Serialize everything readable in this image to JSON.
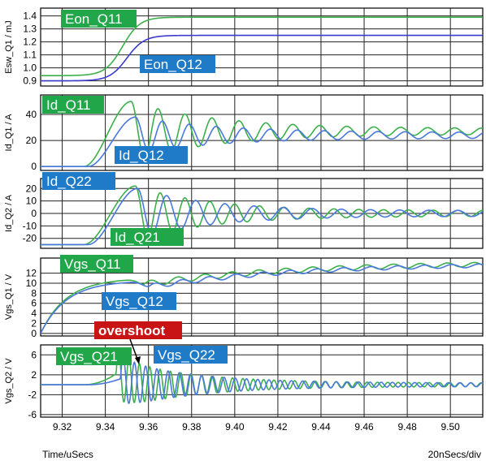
{
  "colors": {
    "q1_green": "#3bb04a",
    "q2_blue": "#4a78dc",
    "eon_q12_line": "#3a3ad0",
    "tag_green": "#22a64a",
    "tag_blue": "#1f7ac8",
    "tag_red": "#c81414",
    "grid": "#222222"
  },
  "footer": {
    "time_label": "Time/uSecs",
    "div_label": "20nSecs/div"
  },
  "chart_data": [
    {
      "type": "line",
      "ylabel": "Esw_Q1 / mJ",
      "ylim": [
        0.86,
        1.46
      ],
      "yticks": [
        0.9,
        1.0,
        1.1,
        1.2,
        1.3,
        1.4
      ],
      "ytick_labels": [
        "0.9",
        "1.0",
        "1.1",
        "1.2",
        "1.3",
        "1.4"
      ],
      "series": [
        {
          "name": "Eon_Q11",
          "color_key": "q1_green",
          "kind": "sigmoid",
          "start_value": 0.94,
          "end_value": 1.39,
          "t_center": 9.348,
          "t_width": 0.004
        },
        {
          "name": "Eon_Q12",
          "color_key": "eon_q12_line",
          "kind": "sigmoid",
          "start_value": 0.9,
          "end_value": 1.25,
          "t_center": 9.35,
          "t_width": 0.004
        }
      ],
      "tags": [
        {
          "text": "Eon_Q11",
          "color_key": "tag_green"
        },
        {
          "text": "Eon_Q12",
          "color_key": "tag_blue"
        }
      ]
    },
    {
      "type": "line",
      "ylabel": "Id_Q1 / A",
      "ylim": [
        -3,
        55
      ],
      "yticks": [
        0,
        20,
        40
      ],
      "ytick_labels": [
        "0",
        "20",
        "40"
      ],
      "series": [
        {
          "name": "Id_Q11",
          "color_key": "q1_green",
          "kind": "ring_rise",
          "base_value": 0,
          "final_value": 27,
          "rise_start": 9.33,
          "rise_end": 9.352,
          "peak_value": 50,
          "period": 0.0125,
          "decay": 0.04
        },
        {
          "name": "Id_Q12",
          "color_key": "q2_blue",
          "kind": "ring_rise",
          "base_value": 0,
          "final_value": 24,
          "rise_start": 9.332,
          "rise_end": 9.354,
          "peak_value": 38,
          "period": 0.0125,
          "decay": 0.04
        }
      ],
      "tags": [
        {
          "text": "Id_Q11",
          "color_key": "tag_green"
        },
        {
          "text": "Id_Q12",
          "color_key": "tag_blue"
        }
      ]
    },
    {
      "type": "line",
      "ylabel": "Id_Q2 / A",
      "ylim": [
        -28,
        28
      ],
      "yticks": [
        -20,
        -10,
        0,
        10,
        20
      ],
      "ytick_labels": [
        "-20",
        "-10",
        "0",
        "10",
        "20"
      ],
      "series": [
        {
          "name": "Id_Q21",
          "color_key": "q1_green",
          "kind": "ring_rise",
          "base_value": -25,
          "final_value": 0,
          "rise_start": 9.33,
          "rise_end": 9.354,
          "peak_value": 22,
          "period": 0.0115,
          "decay": 0.035
        },
        {
          "name": "Id_Q22",
          "color_key": "q2_blue",
          "kind": "ring_rise",
          "base_value": -25,
          "final_value": 0,
          "rise_start": 9.332,
          "rise_end": 9.355,
          "peak_value": 20,
          "period": 0.0135,
          "decay": 0.035
        }
      ],
      "tags": [
        {
          "text": "Id_Q22",
          "color_key": "tag_blue"
        },
        {
          "text": "Id_Q21",
          "color_key": "tag_green"
        }
      ]
    },
    {
      "type": "line",
      "ylabel": "Vgs_Q1 / V",
      "ylim": [
        -0.5,
        15
      ],
      "yticks": [
        0,
        2,
        4,
        6,
        8,
        10,
        12
      ],
      "ytick_labels": [
        "0",
        "2",
        "4",
        "6",
        "8",
        "10",
        "12"
      ],
      "series": [
        {
          "name": "Vgs_Q11",
          "color_key": "q1_green",
          "kind": "charge",
          "start_value": 0,
          "tau": 0.012,
          "plateau_value": 9.8,
          "plateau_center": 9.358,
          "final_value": 14.2,
          "ripple": 0.6,
          "period": 0.0125
        },
        {
          "name": "Vgs_Q12",
          "color_key": "q2_blue",
          "kind": "charge",
          "start_value": 0,
          "tau": 0.012,
          "plateau_value": 9.3,
          "plateau_center": 9.36,
          "final_value": 14.0,
          "ripple": 0.5,
          "period": 0.0125
        }
      ],
      "tags": [
        {
          "text": "Vgs_Q11",
          "color_key": "tag_green"
        },
        {
          "text": "Vgs_Q12",
          "color_key": "tag_blue"
        }
      ]
    },
    {
      "type": "line",
      "ylabel": "Vgs_Q2 / V",
      "ylim": [
        -6.5,
        8
      ],
      "yticks": [
        -6,
        -2,
        2,
        6
      ],
      "ytick_labels": [
        "-6",
        "-2",
        "2",
        "6"
      ],
      "series": [
        {
          "name": "Vgs_Q21",
          "color_key": "q1_green",
          "kind": "burst",
          "base_value": 0,
          "t_start": 9.345,
          "amplitude": 4.8,
          "period": 0.0048,
          "decay": 0.035,
          "pre_value": 2.2
        },
        {
          "name": "Vgs_Q22",
          "color_key": "q2_blue",
          "kind": "burst",
          "base_value": 0,
          "t_start": 9.347,
          "amplitude": 4.5,
          "period": 0.0052,
          "decay": 0.035,
          "pre_value": 1.2
        }
      ],
      "tags": [
        {
          "text": "Vgs_Q21",
          "color_key": "tag_green"
        },
        {
          "text": "Vgs_Q22",
          "color_key": "tag_blue"
        },
        {
          "text": "overshoot",
          "color_key": "tag_red"
        }
      ]
    }
  ],
  "x_axis": {
    "xlim": [
      9.31,
      9.515
    ],
    "ticks": [
      9.32,
      9.34,
      9.36,
      9.38,
      9.4,
      9.42,
      9.44,
      9.46,
      9.48,
      9.5
    ],
    "tick_labels": [
      "9.32",
      "9.34",
      "9.36",
      "9.38",
      "9.40",
      "9.42",
      "9.44",
      "9.46",
      "9.48",
      "9.50"
    ]
  }
}
